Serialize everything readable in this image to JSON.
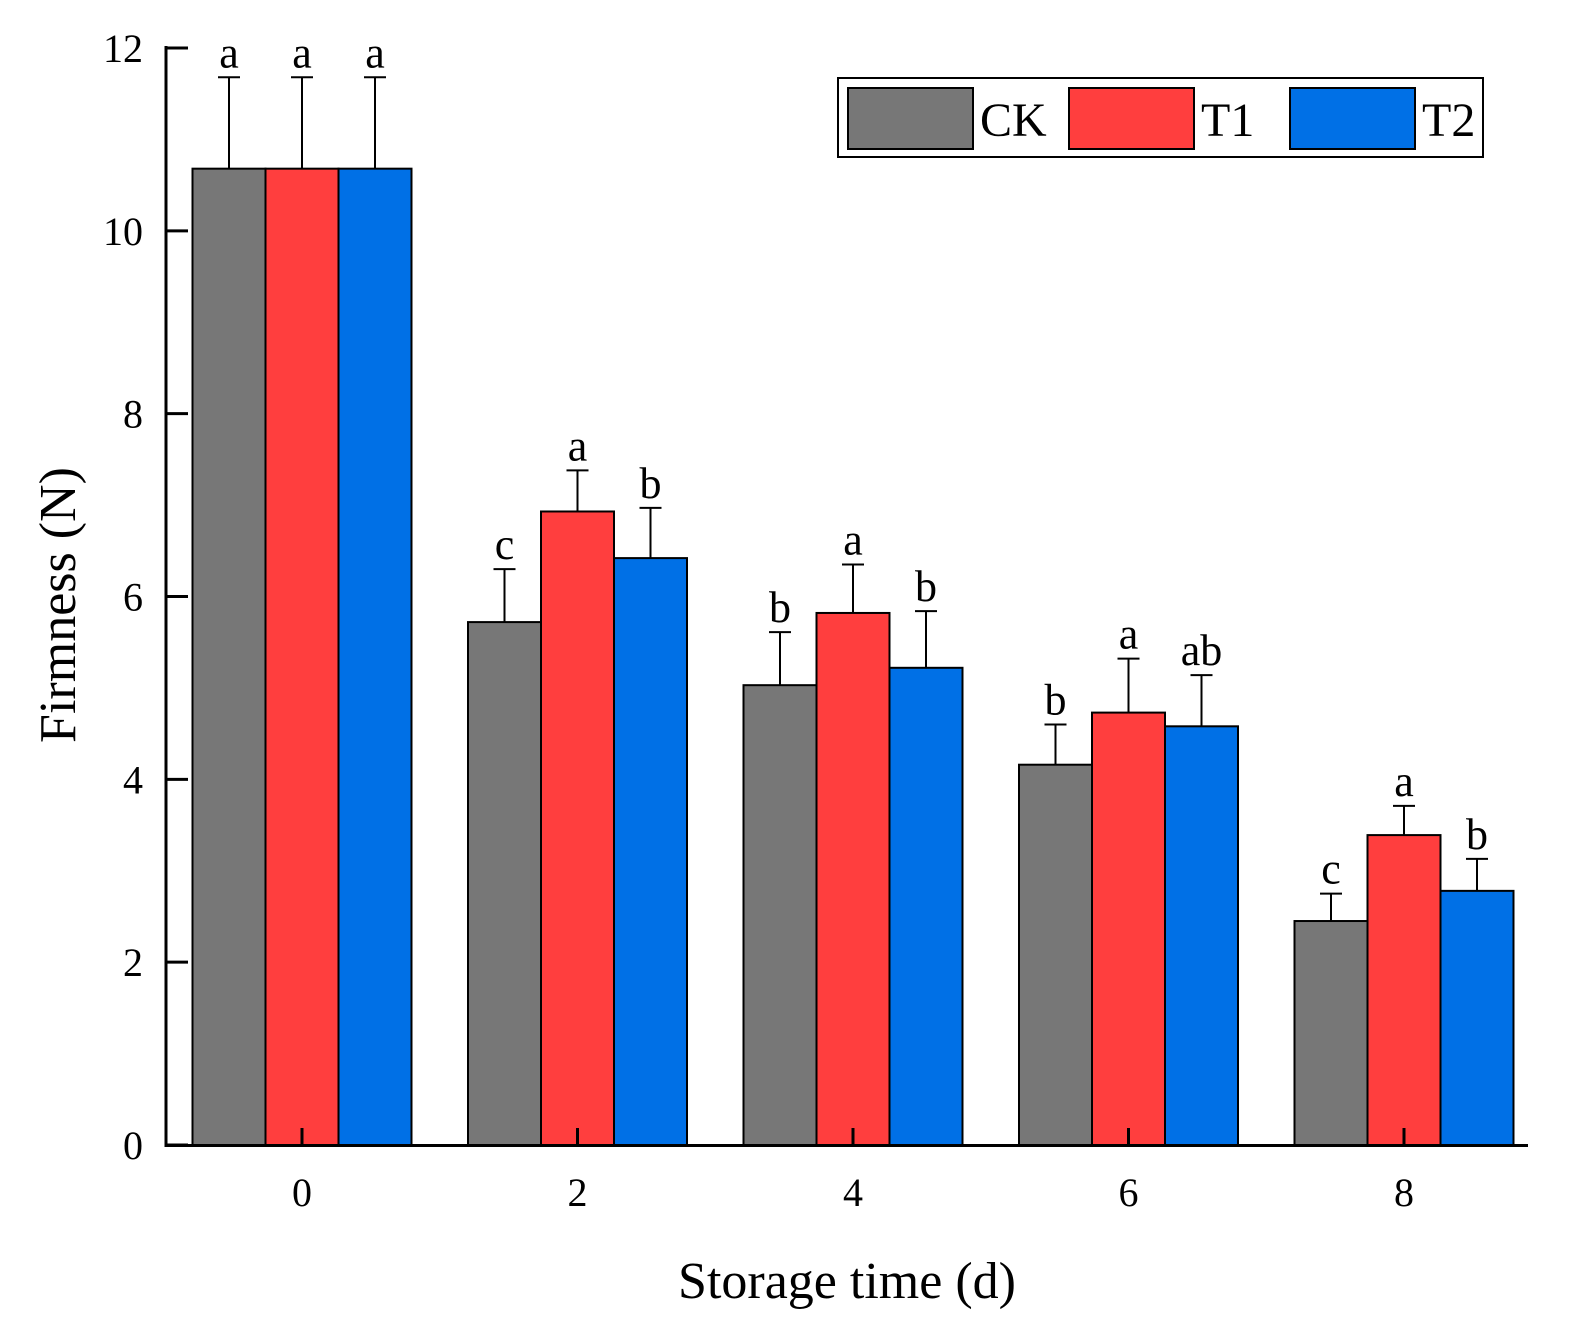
{
  "chart_data": {
    "type": "bar",
    "title": "",
    "xlabel": "Storage time (d)",
    "ylabel": "Firmness (N)",
    "categories": [
      "0",
      "2",
      "4",
      "6",
      "8"
    ],
    "ylim": [
      0,
      12
    ],
    "yticks": [
      "0",
      "2",
      "4",
      "6",
      "8",
      "10",
      "12"
    ],
    "grid": false,
    "legend_position": "top-right",
    "series": [
      {
        "name": "CK",
        "color": "#777777",
        "values": [
          10.68,
          5.72,
          5.03,
          4.16,
          2.45
        ],
        "errors": [
          1.0,
          0.58,
          0.58,
          0.44,
          0.3
        ],
        "letters": [
          "a",
          "c",
          "b",
          "b",
          "c"
        ]
      },
      {
        "name": "T1",
        "color": "#ff3e3e",
        "values": [
          10.68,
          6.93,
          5.82,
          4.73,
          3.39
        ],
        "errors": [
          1.0,
          0.45,
          0.53,
          0.59,
          0.32
        ],
        "letters": [
          "a",
          "a",
          "a",
          "a",
          "a"
        ]
      },
      {
        "name": "T2",
        "color": "#0070e6",
        "values": [
          10.68,
          6.42,
          5.22,
          4.58,
          2.78
        ],
        "errors": [
          1.0,
          0.55,
          0.62,
          0.56,
          0.35
        ],
        "letters": [
          "a",
          "b",
          "b",
          "ab",
          "b"
        ]
      }
    ]
  }
}
